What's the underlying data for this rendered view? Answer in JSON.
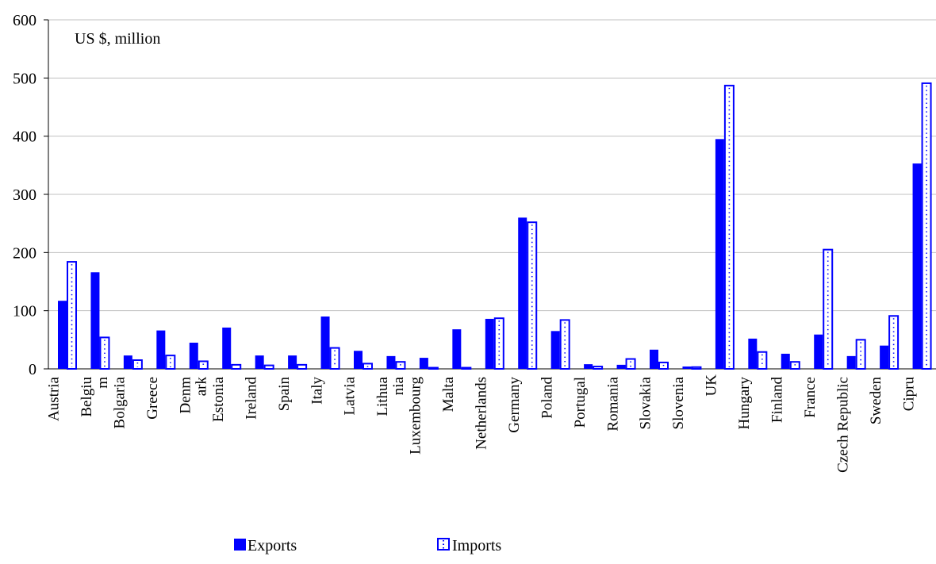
{
  "chart_data": {
    "type": "bar",
    "unit_label": "US $, million",
    "categories": [
      "Austria",
      "Belgiu\nm",
      "Bolgaria",
      "Greece",
      "Denm\nark",
      "Estonia",
      "Ireland",
      "Spain",
      "Italy",
      "Latvia",
      "Lithua\nnia",
      "Luxembourg",
      "Malta",
      "Netherlands",
      "Germany",
      "Poland",
      "Portugal",
      "Romania",
      "Slovakia",
      "Slovenia",
      "UK",
      "Hungary",
      "Finland",
      "France",
      "Czech Republic",
      "Sweden",
      "Cipru"
    ],
    "series": [
      {
        "name": "Exports",
        "color": "#0000ff",
        "style": "solid",
        "values": [
          117,
          166,
          23,
          66,
          45,
          71,
          23,
          23,
          90,
          31,
          22,
          19,
          68,
          86,
          260,
          65,
          8,
          7,
          33,
          4,
          395,
          52,
          26,
          59,
          22,
          40,
          353
        ]
      },
      {
        "name": "Imports",
        "color": "#0000ff",
        "style": "dotted-outline",
        "values": [
          184,
          54,
          15,
          23,
          13,
          7,
          6,
          7,
          36,
          9,
          12,
          2,
          2,
          87,
          252,
          84,
          4,
          17,
          11,
          3,
          487,
          29,
          12,
          205,
          50,
          91,
          491
        ]
      }
    ],
    "yticks": [
      0,
      100,
      200,
      300,
      400,
      500,
      600
    ],
    "ylim": [
      0,
      600
    ],
    "grid": true,
    "legend_position": "bottom"
  }
}
